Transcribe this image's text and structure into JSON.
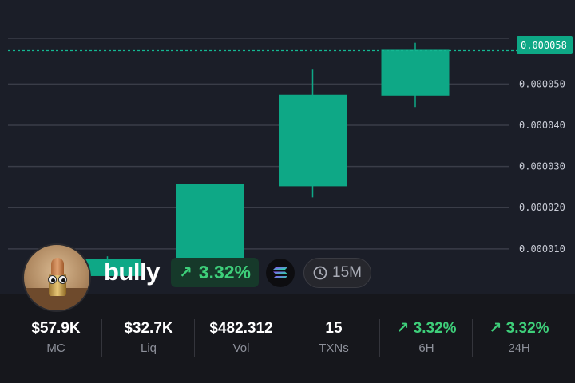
{
  "chart_data": {
    "type": "candlestick",
    "y_ticks": [
      "0.000050",
      "0.000040",
      "0.000030",
      "0.000020",
      "0.000010"
    ],
    "current_price_label": "0.000058",
    "current_price": 5.81e-05,
    "ylim": [
      3.2e-06,
      6.11e-05
    ],
    "candles": [
      {
        "open": 3.4e-06,
        "high": 8.2e-06,
        "low": 3e-06,
        "close": 7.6e-06
      },
      {
        "open": 7.7e-06,
        "high": 2.57e-05,
        "low": 7.3e-06,
        "close": 2.57e-05
      },
      {
        "open": 2.52e-05,
        "high": 5.35e-05,
        "low": 2.25e-05,
        "close": 4.74e-05
      },
      {
        "open": 4.72e-05,
        "high": 6e-05,
        "low": 4.44e-05,
        "close": 5.83e-05
      }
    ],
    "colors": {
      "up": "#0ea886",
      "grid": "#3a3d48",
      "price_line": "#14b892",
      "axis_text": "#c9ccd6"
    }
  },
  "token": {
    "name": "bully",
    "change_pct": "3.32%",
    "chain_icon": "solana-icon",
    "interval": "15M"
  },
  "stats": [
    {
      "value": "$57.9K",
      "label": "MC",
      "trend": "none"
    },
    {
      "value": "$32.7K",
      "label": "Liq",
      "trend": "none"
    },
    {
      "value": "$482.312",
      "label": "Vol",
      "trend": "none"
    },
    {
      "value": "15",
      "label": "TXNs",
      "trend": "none"
    },
    {
      "value": "3.32%",
      "label": "6H",
      "trend": "up"
    },
    {
      "value": "3.32%",
      "label": "24H",
      "trend": "up"
    }
  ],
  "colors": {
    "positive": "#3ecf7a",
    "panel_bg": "#16171c",
    "chart_bg": "#1b1e28"
  }
}
